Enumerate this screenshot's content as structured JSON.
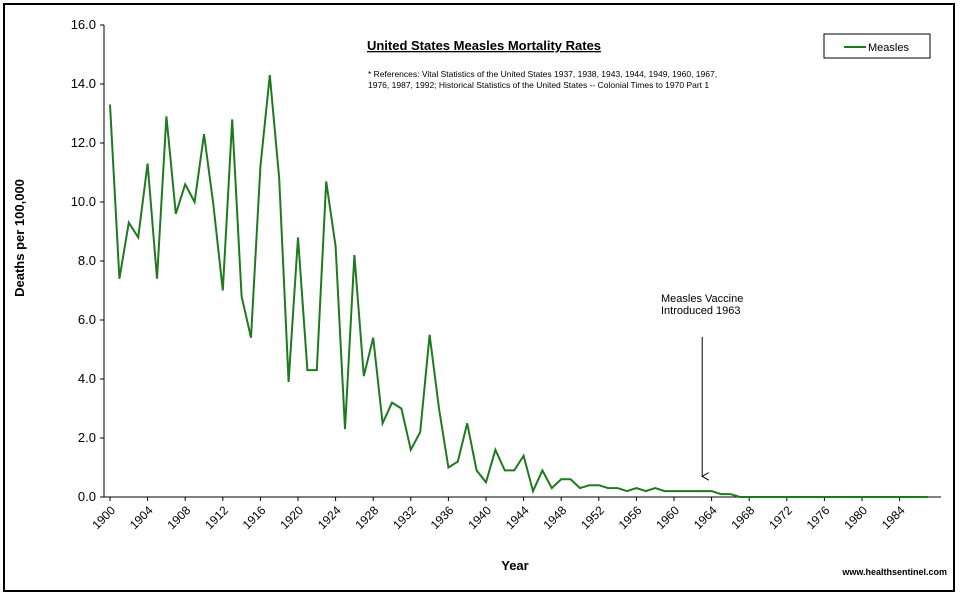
{
  "chart_data": {
    "type": "line",
    "title": "United States Measles Mortality Rates",
    "references": [
      "* References: Vital Statistics of the United States 1937, 1938, 1943, 1944, 1949, 1960, 1967,",
      "1976, 1987, 1992; Historical Statistics of the United States -- Colonial Times to 1970 Part 1"
    ],
    "xlabel": "Year",
    "ylabel": "Deaths per 100,000",
    "ylim": [
      0,
      16
    ],
    "xlim": [
      1900,
      1987
    ],
    "yticks": [
      "0.0",
      "2.0",
      "4.0",
      "6.0",
      "8.0",
      "10.0",
      "12.0",
      "14.0",
      "16.0"
    ],
    "xticks": [
      "1900",
      "1904",
      "1908",
      "1912",
      "1916",
      "1920",
      "1924",
      "1928",
      "1932",
      "1936",
      "1940",
      "1944",
      "1948",
      "1952",
      "1956",
      "1960",
      "1964",
      "1968",
      "1972",
      "1976",
      "1980",
      "1984"
    ],
    "grid": false,
    "legend": {
      "position": "top-right"
    },
    "series": [
      {
        "name": "Measles",
        "color": "#1f7a1f",
        "x": [
          1900,
          1901,
          1902,
          1903,
          1904,
          1905,
          1906,
          1907,
          1908,
          1909,
          1910,
          1911,
          1912,
          1913,
          1914,
          1915,
          1916,
          1917,
          1918,
          1919,
          1920,
          1921,
          1922,
          1923,
          1924,
          1925,
          1926,
          1927,
          1928,
          1929,
          1930,
          1931,
          1932,
          1933,
          1934,
          1935,
          1936,
          1937,
          1938,
          1939,
          1940,
          1941,
          1942,
          1943,
          1944,
          1945,
          1946,
          1947,
          1948,
          1949,
          1950,
          1951,
          1952,
          1953,
          1954,
          1955,
          1956,
          1957,
          1958,
          1959,
          1960,
          1961,
          1962,
          1963,
          1964,
          1965,
          1966,
          1967,
          1968,
          1969,
          1970,
          1971,
          1972,
          1973,
          1974,
          1975,
          1976,
          1977,
          1978,
          1979,
          1980,
          1981,
          1982,
          1983,
          1984,
          1985,
          1986,
          1987
        ],
        "values": [
          13.3,
          7.4,
          9.3,
          8.8,
          11.3,
          7.4,
          12.9,
          9.6,
          10.6,
          10.0,
          12.3,
          9.9,
          7.0,
          12.8,
          6.8,
          5.4,
          11.2,
          14.3,
          10.8,
          3.9,
          8.8,
          4.3,
          4.3,
          10.7,
          8.5,
          2.3,
          8.2,
          4.1,
          5.4,
          2.5,
          3.2,
          3.0,
          1.6,
          2.2,
          5.5,
          3.0,
          1.0,
          1.2,
          2.5,
          0.9,
          0.5,
          1.6,
          0.9,
          0.9,
          1.4,
          0.2,
          0.9,
          0.3,
          0.6,
          0.6,
          0.3,
          0.4,
          0.4,
          0.3,
          0.3,
          0.2,
          0.3,
          0.2,
          0.3,
          0.2,
          0.2,
          0.2,
          0.2,
          0.2,
          0.2,
          0.1,
          0.1,
          0.0,
          0.0,
          0.0,
          0.0,
          0.0,
          0.0,
          0.0,
          0.0,
          0.0,
          0.0,
          0.0,
          0.0,
          0.0,
          0.0,
          0.0,
          0.0,
          0.0,
          0.0,
          0.0,
          0.0,
          0.0
        ]
      }
    ],
    "annotations": [
      {
        "text_lines": [
          "Measles Vaccine",
          "Introduced 1963"
        ],
        "arrow_to": {
          "x": 1963,
          "y": 0.7
        }
      }
    ],
    "source": "www.healthsentinel.com"
  }
}
